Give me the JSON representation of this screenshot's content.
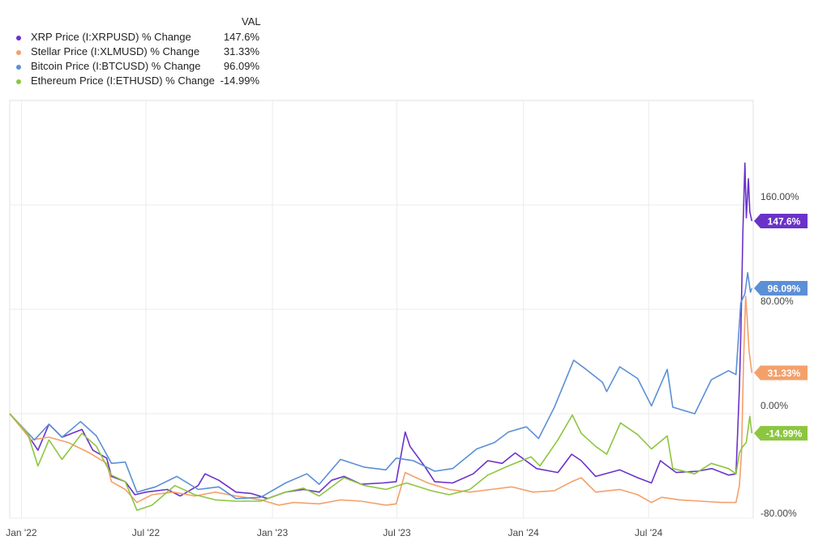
{
  "legend": {
    "header": "VAL",
    "items": [
      {
        "name": "XRP Price (I:XRPUSD) % Change",
        "value": "147.6%",
        "color": "#6a32c9"
      },
      {
        "name": "Stellar Price (I:XLMUSD) % Change",
        "value": "31.33%",
        "color": "#f4a06b"
      },
      {
        "name": "Bitcoin Price (I:BTCUSD) % Change",
        "value": "96.09%",
        "color": "#5b8fd6"
      },
      {
        "name": "Ethereum Price (I:ETHUSD) % Change",
        "value": "-14.99%",
        "color": "#8cc63f"
      }
    ]
  },
  "chart_data": {
    "type": "line",
    "x_start": "2021-12-15",
    "x_end": "2024-11-30",
    "x_ticks": [
      {
        "date": "2022-01-01",
        "label": "Jan '22"
      },
      {
        "date": "2022-07-01",
        "label": "Jul '22"
      },
      {
        "date": "2023-01-01",
        "label": "Jan '23"
      },
      {
        "date": "2023-07-01",
        "label": "Jul '23"
      },
      {
        "date": "2024-01-01",
        "label": "Jan '24"
      },
      {
        "date": "2024-07-01",
        "label": "Jul '24"
      }
    ],
    "y_ticks": [
      {
        "value": 160,
        "label": "160.00%"
      },
      {
        "value": 80,
        "label": "80.00%"
      },
      {
        "value": 0,
        "label": "0.00%"
      },
      {
        "value": -80,
        "label": "-80.00%"
      }
    ],
    "ylim": [
      -80,
      240
    ],
    "grid": true,
    "series": [
      {
        "name": "XRP Price (I:XRPUSD) % Change",
        "color": "#6a32c9",
        "end_label": "147.6%",
        "points": [
          [
            "2021-12-15",
            0
          ],
          [
            "2022-01-05",
            -12
          ],
          [
            "2022-01-25",
            -28
          ],
          [
            "2022-02-10",
            -8
          ],
          [
            "2022-03-01",
            -18
          ],
          [
            "2022-03-30",
            -12
          ],
          [
            "2022-04-15",
            -28
          ],
          [
            "2022-05-05",
            -34
          ],
          [
            "2022-05-12",
            -48
          ],
          [
            "2022-06-01",
            -52
          ],
          [
            "2022-06-15",
            -62
          ],
          [
            "2022-07-01",
            -60
          ],
          [
            "2022-08-01",
            -58
          ],
          [
            "2022-08-20",
            -63
          ],
          [
            "2022-09-15",
            -55
          ],
          [
            "2022-09-25",
            -46
          ],
          [
            "2022-10-15",
            -51
          ],
          [
            "2022-11-09",
            -60
          ],
          [
            "2022-12-01",
            -61
          ],
          [
            "2022-12-25",
            -65
          ],
          [
            "2023-01-20",
            -60
          ],
          [
            "2023-02-15",
            -58
          ],
          [
            "2023-03-10",
            -60
          ],
          [
            "2023-03-28",
            -51
          ],
          [
            "2023-04-15",
            -48
          ],
          [
            "2023-05-10",
            -54
          ],
          [
            "2023-06-10",
            -53
          ],
          [
            "2023-06-30",
            -52
          ],
          [
            "2023-07-13",
            -14
          ],
          [
            "2023-07-20",
            -25
          ],
          [
            "2023-08-10",
            -40
          ],
          [
            "2023-08-25",
            -52
          ],
          [
            "2023-09-20",
            -53
          ],
          [
            "2023-10-20",
            -46
          ],
          [
            "2023-11-10",
            -36
          ],
          [
            "2023-12-01",
            -38
          ],
          [
            "2023-12-20",
            -30
          ],
          [
            "2024-01-20",
            -42
          ],
          [
            "2024-02-20",
            -45
          ],
          [
            "2024-03-11",
            -31
          ],
          [
            "2024-03-25",
            -36
          ],
          [
            "2024-04-15",
            -48
          ],
          [
            "2024-05-20",
            -43
          ],
          [
            "2024-06-15",
            -49
          ],
          [
            "2024-07-05",
            -53
          ],
          [
            "2024-07-18",
            -36
          ],
          [
            "2024-08-10",
            -45
          ],
          [
            "2024-09-10",
            -44
          ],
          [
            "2024-10-01",
            -42
          ],
          [
            "2024-10-25",
            -47
          ],
          [
            "2024-11-05",
            -46
          ],
          [
            "2024-11-10",
            20
          ],
          [
            "2024-11-12",
            60
          ],
          [
            "2024-11-15",
            140
          ],
          [
            "2024-11-18",
            192
          ],
          [
            "2024-11-20",
            150
          ],
          [
            "2024-11-23",
            180
          ],
          [
            "2024-11-25",
            155
          ],
          [
            "2024-11-28",
            147.6
          ]
        ]
      },
      {
        "name": "Stellar Price (I:XLMUSD) % Change",
        "color": "#f4a06b",
        "end_label": "31.33%",
        "points": [
          [
            "2021-12-15",
            0
          ],
          [
            "2022-01-15",
            -20
          ],
          [
            "2022-02-10",
            -18
          ],
          [
            "2022-03-10",
            -22
          ],
          [
            "2022-04-10",
            -30
          ],
          [
            "2022-05-05",
            -38
          ],
          [
            "2022-05-12",
            -52
          ],
          [
            "2022-06-01",
            -58
          ],
          [
            "2022-06-18",
            -68
          ],
          [
            "2022-07-10",
            -62
          ],
          [
            "2022-08-10",
            -60
          ],
          [
            "2022-09-10",
            -63
          ],
          [
            "2022-10-10",
            -60
          ],
          [
            "2022-11-09",
            -63
          ],
          [
            "2022-12-15",
            -66
          ],
          [
            "2023-01-10",
            -70
          ],
          [
            "2023-02-01",
            -68
          ],
          [
            "2023-03-10",
            -69
          ],
          [
            "2023-04-10",
            -66
          ],
          [
            "2023-05-10",
            -67
          ],
          [
            "2023-06-15",
            -70
          ],
          [
            "2023-06-30",
            -69
          ],
          [
            "2023-07-13",
            -45
          ],
          [
            "2023-07-25",
            -48
          ],
          [
            "2023-08-15",
            -53
          ],
          [
            "2023-09-15",
            -58
          ],
          [
            "2023-10-15",
            -60
          ],
          [
            "2023-11-15",
            -58
          ],
          [
            "2023-12-15",
            -56
          ],
          [
            "2024-01-15",
            -60
          ],
          [
            "2024-02-15",
            -59
          ],
          [
            "2024-03-11",
            -52
          ],
          [
            "2024-03-25",
            -49
          ],
          [
            "2024-04-15",
            -60
          ],
          [
            "2024-05-20",
            -58
          ],
          [
            "2024-06-15",
            -62
          ],
          [
            "2024-07-05",
            -68
          ],
          [
            "2024-07-20",
            -64
          ],
          [
            "2024-08-15",
            -66
          ],
          [
            "2024-09-15",
            -67
          ],
          [
            "2024-10-15",
            -68
          ],
          [
            "2024-11-05",
            -68
          ],
          [
            "2024-11-10",
            -55
          ],
          [
            "2024-11-13",
            -30
          ],
          [
            "2024-11-16",
            40
          ],
          [
            "2024-11-19",
            90
          ],
          [
            "2024-11-21",
            75
          ],
          [
            "2024-11-24",
            48
          ],
          [
            "2024-11-26",
            40
          ],
          [
            "2024-11-28",
            31.33
          ]
        ]
      },
      {
        "name": "Bitcoin Price (I:BTCUSD) % Change",
        "color": "#5b8fd6",
        "end_label": "96.09%",
        "points": [
          [
            "2021-12-15",
            0
          ],
          [
            "2022-01-20",
            -20
          ],
          [
            "2022-02-10",
            -8
          ],
          [
            "2022-03-01",
            -18
          ],
          [
            "2022-03-28",
            -6
          ],
          [
            "2022-04-20",
            -17
          ],
          [
            "2022-05-12",
            -38
          ],
          [
            "2022-06-01",
            -37
          ],
          [
            "2022-06-18",
            -60
          ],
          [
            "2022-07-15",
            -56
          ],
          [
            "2022-08-15",
            -48
          ],
          [
            "2022-09-15",
            -58
          ],
          [
            "2022-10-15",
            -56
          ],
          [
            "2022-11-09",
            -65
          ],
          [
            "2022-12-15",
            -64
          ],
          [
            "2023-01-20",
            -53
          ],
          [
            "2023-02-20",
            -46
          ],
          [
            "2023-03-10",
            -54
          ],
          [
            "2023-04-10",
            -35
          ],
          [
            "2023-05-15",
            -41
          ],
          [
            "2023-06-15",
            -43
          ],
          [
            "2023-06-30",
            -34
          ],
          [
            "2023-07-25",
            -36
          ],
          [
            "2023-08-25",
            -44
          ],
          [
            "2023-09-20",
            -42
          ],
          [
            "2023-10-25",
            -27
          ],
          [
            "2023-11-20",
            -22
          ],
          [
            "2023-12-10",
            -14
          ],
          [
            "2024-01-05",
            -10
          ],
          [
            "2024-01-23",
            -19
          ],
          [
            "2024-02-15",
            5
          ],
          [
            "2024-03-14",
            41
          ],
          [
            "2024-04-01",
            34
          ],
          [
            "2024-04-25",
            24
          ],
          [
            "2024-05-01",
            17
          ],
          [
            "2024-05-20",
            36
          ],
          [
            "2024-06-15",
            27
          ],
          [
            "2024-07-05",
            6
          ],
          [
            "2024-07-28",
            34
          ],
          [
            "2024-08-05",
            5
          ],
          [
            "2024-09-06",
            0
          ],
          [
            "2024-09-30",
            26
          ],
          [
            "2024-10-25",
            33
          ],
          [
            "2024-11-05",
            30
          ],
          [
            "2024-11-12",
            85
          ],
          [
            "2024-11-18",
            92
          ],
          [
            "2024-11-22",
            108
          ],
          [
            "2024-11-26",
            93
          ],
          [
            "2024-11-28",
            96.09
          ]
        ]
      },
      {
        "name": "Ethereum Price (I:ETHUSD) % Change",
        "color": "#8cc63f",
        "end_label": "-14.99%",
        "points": [
          [
            "2021-12-15",
            0
          ],
          [
            "2022-01-10",
            -15
          ],
          [
            "2022-01-25",
            -40
          ],
          [
            "2022-02-10",
            -20
          ],
          [
            "2022-03-01",
            -35
          ],
          [
            "2022-03-30",
            -15
          ],
          [
            "2022-04-20",
            -25
          ],
          [
            "2022-05-12",
            -47
          ],
          [
            "2022-06-01",
            -52
          ],
          [
            "2022-06-18",
            -74
          ],
          [
            "2022-07-10",
            -70
          ],
          [
            "2022-08-12",
            -55
          ],
          [
            "2022-09-10",
            -62
          ],
          [
            "2022-10-10",
            -66
          ],
          [
            "2022-11-09",
            -67
          ],
          [
            "2022-12-15",
            -67
          ],
          [
            "2023-01-20",
            -60
          ],
          [
            "2023-02-15",
            -57
          ],
          [
            "2023-03-10",
            -63
          ],
          [
            "2023-04-15",
            -49
          ],
          [
            "2023-05-15",
            -55
          ],
          [
            "2023-06-15",
            -58
          ],
          [
            "2023-07-15",
            -53
          ],
          [
            "2023-08-20",
            -59
          ],
          [
            "2023-09-15",
            -62
          ],
          [
            "2023-10-15",
            -58
          ],
          [
            "2023-11-10",
            -47
          ],
          [
            "2023-12-10",
            -40
          ],
          [
            "2024-01-12",
            -33
          ],
          [
            "2024-01-25",
            -40
          ],
          [
            "2024-02-20",
            -20
          ],
          [
            "2024-03-12",
            -1
          ],
          [
            "2024-03-25",
            -15
          ],
          [
            "2024-04-15",
            -25
          ],
          [
            "2024-05-01",
            -31
          ],
          [
            "2024-05-21",
            -7
          ],
          [
            "2024-06-15",
            -16
          ],
          [
            "2024-07-05",
            -27
          ],
          [
            "2024-07-28",
            -17
          ],
          [
            "2024-08-05",
            -42
          ],
          [
            "2024-09-06",
            -46
          ],
          [
            "2024-09-30",
            -38
          ],
          [
            "2024-10-25",
            -42
          ],
          [
            "2024-11-05",
            -46
          ],
          [
            "2024-11-10",
            -30
          ],
          [
            "2024-11-15",
            -25
          ],
          [
            "2024-11-20",
            -22
          ],
          [
            "2024-11-25",
            -2
          ],
          [
            "2024-11-28",
            -14.99
          ]
        ]
      }
    ]
  }
}
